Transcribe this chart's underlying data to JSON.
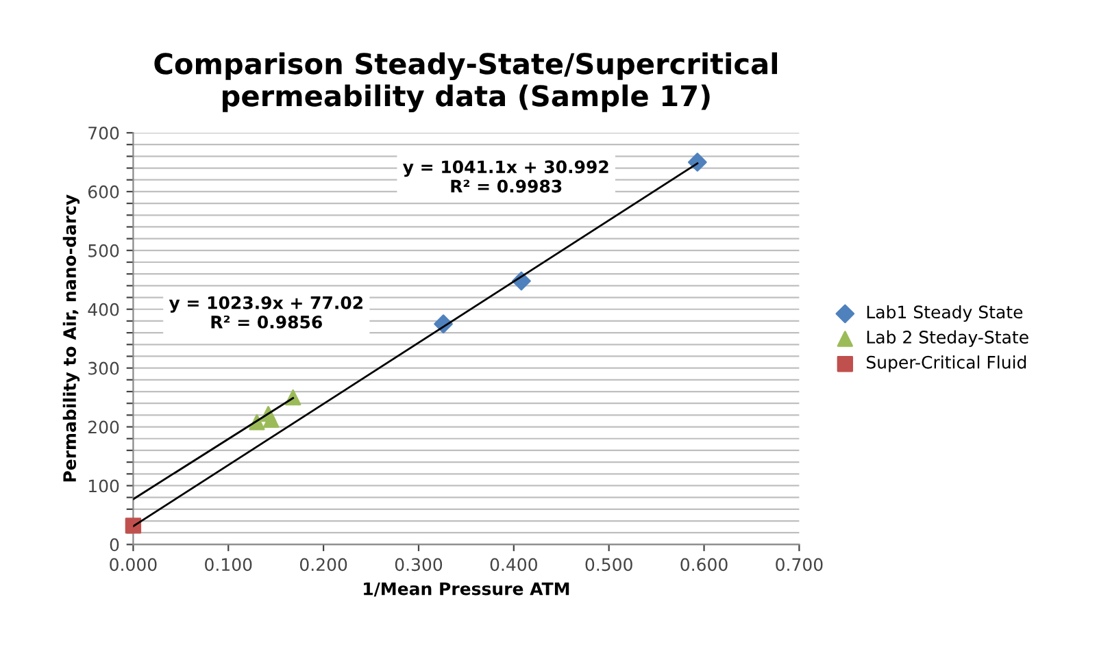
{
  "chart_data": {
    "type": "scatter",
    "title": "Comparison Steady-State/Supercritical\npermeability data (Sample 17)",
    "xlabel": "1/Mean Pressure ATM",
    "ylabel": "Permability to Air, nano-darcy",
    "xlim": [
      0,
      0.7
    ],
    "xticks": [
      {
        "value": 0,
        "label": "0.000"
      },
      {
        "value": 0.1,
        "label": "0.100"
      },
      {
        "value": 0.2,
        "label": "0.200"
      },
      {
        "value": 0.3,
        "label": "0.300"
      },
      {
        "value": 0.4,
        "label": "0.400"
      },
      {
        "value": 0.5,
        "label": "0.500"
      },
      {
        "value": 0.6,
        "label": "0.600"
      },
      {
        "value": 0.7,
        "label": "0.700"
      }
    ],
    "ylim": [
      0,
      700
    ],
    "yticks": [
      0,
      {
        "value": 20,
        "label": null
      },
      {
        "value": 40,
        "label": null
      },
      {
        "value": 60,
        "label": null
      },
      {
        "value": 80,
        "label": null
      },
      100,
      {
        "value": 120,
        "label": null
      },
      {
        "value": 140,
        "label": null
      },
      {
        "value": 160,
        "label": null
      },
      {
        "value": 180,
        "label": null
      },
      200,
      {
        "value": 220,
        "label": null
      },
      {
        "value": 240,
        "label": null
      },
      {
        "value": 260,
        "label": null
      },
      {
        "value": 280,
        "label": null
      },
      300,
      {
        "value": 320,
        "label": null
      },
      {
        "value": 340,
        "label": null
      },
      {
        "value": 360,
        "label": null
      },
      {
        "value": 380,
        "label": null
      },
      400,
      {
        "value": 420,
        "label": null
      },
      {
        "value": 440,
        "label": null
      },
      {
        "value": 460,
        "label": null
      },
      {
        "value": 480,
        "label": null
      },
      500,
      {
        "value": 520,
        "label": null
      },
      {
        "value": 540,
        "label": null
      },
      {
        "value": 560,
        "label": null
      },
      {
        "value": 580,
        "label": null
      },
      600,
      {
        "value": 620,
        "label": null
      },
      {
        "value": 640,
        "label": null
      },
      {
        "value": 660,
        "label": null
      },
      {
        "value": 680,
        "label": null
      },
      700
    ],
    "grid": "y",
    "legend": "right",
    "series": [
      {
        "name": "Lab1 Steady State",
        "color": "#4f81bd",
        "marker": "diamond",
        "x": [
          0.326,
          0.408,
          0.593
        ],
        "values": [
          375,
          448,
          650
        ]
      },
      {
        "name": "Lab 2 Steday-State",
        "color": "#9bbb59",
        "marker": "triangle",
        "x": [
          0.13,
          0.142,
          0.145,
          0.168
        ],
        "values": [
          208,
          222,
          212,
          250
        ]
      },
      {
        "name": "Super-Critical Fluid",
        "color": "#c0504d",
        "marker": "square",
        "x": [
          0.0
        ],
        "values": [
          32
        ]
      },
      {
        "type": "line",
        "color": "#000000",
        "marker": "none",
        "x": [
          0.0,
          0.593
        ],
        "values": [
          31,
          648
        ]
      },
      {
        "type": "line",
        "color": "#000000",
        "marker": "none",
        "x": [
          0.0,
          0.168
        ],
        "values": [
          77,
          249
        ]
      }
    ],
    "annotations": [
      "y = 1041.1x + 30.992\nR² = 0.9983",
      "y = 1023.9x + 77.02\nR² = 0.9856"
    ]
  }
}
